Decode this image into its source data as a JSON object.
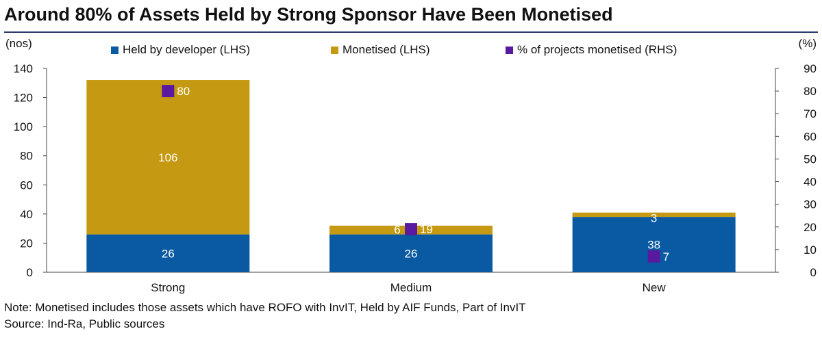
{
  "title": "Around 80% of Assets Held by Strong Sponsor Have Been Monetised",
  "note": "Note: Monetised includes those assets which have ROFO with InvIT, Held by AIF Funds, Part of InvIT",
  "source": "Source: Ind-Ra, Public sources",
  "colors": {
    "held": "#0a5aa3",
    "monetised": "#c59a12",
    "percent": "#5a1aa0",
    "axis": "#444444"
  },
  "chart_data": {
    "type": "bar",
    "stacked": true,
    "categories": [
      "Strong",
      "Medium",
      "New"
    ],
    "series": [
      {
        "name": "Held by developer (LHS)",
        "values": [
          26,
          26,
          38
        ],
        "axis": "left"
      },
      {
        "name": "Monetised (LHS)",
        "values": [
          106,
          6,
          3
        ],
        "axis": "left"
      },
      {
        "name": "% of projects monetised (RHS)",
        "values": [
          80,
          19,
          7
        ],
        "axis": "right",
        "marker": "square"
      }
    ],
    "ylabel": "(nos)",
    "y2label": "(%)",
    "ylim": [
      0,
      140
    ],
    "yticks": [
      0,
      20,
      40,
      60,
      80,
      100,
      120,
      140
    ],
    "y2lim": [
      0,
      90
    ],
    "y2ticks": [
      0,
      10,
      20,
      30,
      40,
      50,
      60,
      70,
      80,
      90
    ],
    "grid": false,
    "legend": "top"
  }
}
